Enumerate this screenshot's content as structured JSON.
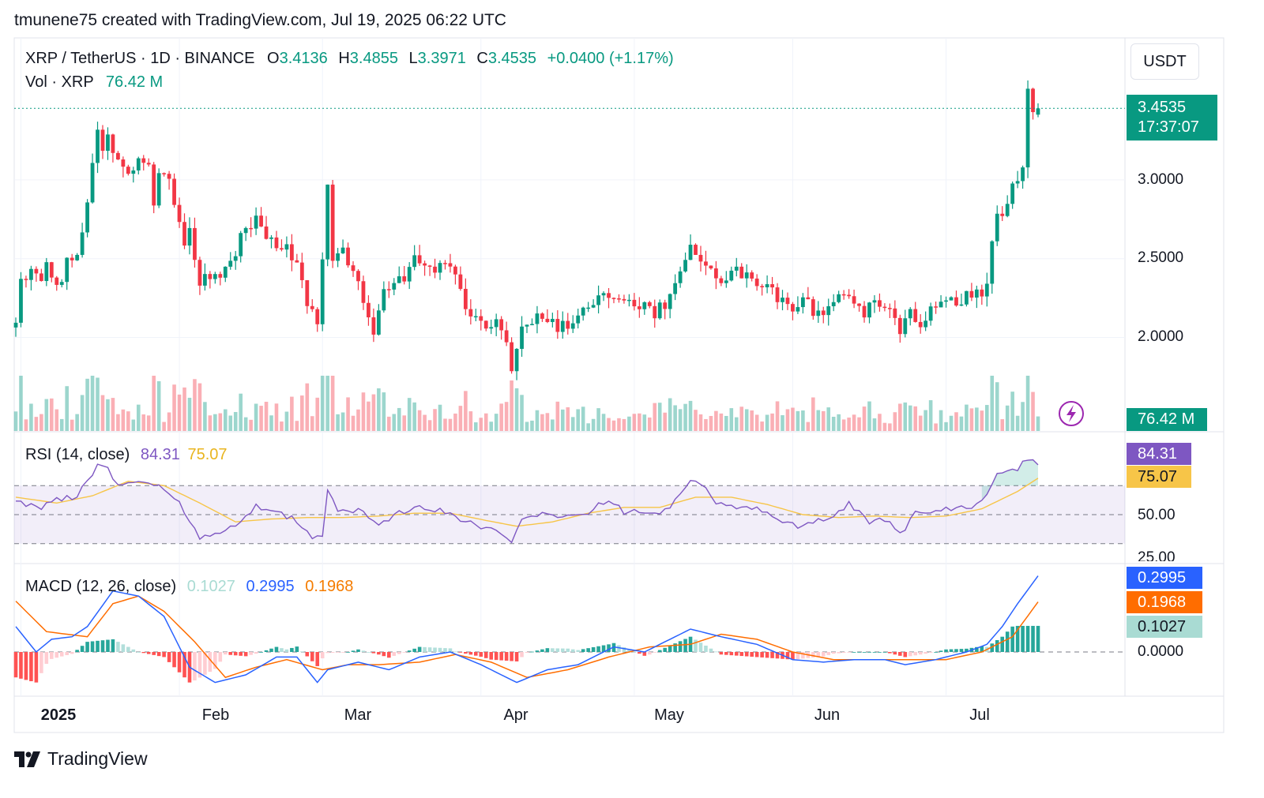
{
  "credit": "tmunene75 created with TradingView.com, Jul 19, 2025 06:22 UTC",
  "legend": {
    "symbol": "XRP / TetherUS · 1D · BINANCE",
    "o_label": "O",
    "o": "3.4136",
    "h_label": "H",
    "h": "3.4855",
    "l_label": "L",
    "l": "3.3971",
    "c_label": "C",
    "c": "3.4535",
    "change": "+0.0400 (+1.17%)",
    "vol_label": "Vol · XRP",
    "vol": "76.42 M"
  },
  "currency": "USDT",
  "price_tag": {
    "price": "3.4535",
    "countdown": "17:37:07"
  },
  "vol_tag": "76.42 M",
  "price_axis": [
    "3.0000",
    "2.5000",
    "2.0000"
  ],
  "rsi": {
    "label": "RSI (14, close)",
    "value": "84.31",
    "ma": "75.07",
    "axis": [
      "50.00",
      "25.00"
    ]
  },
  "macd": {
    "label": "MACD (12, 26, close)",
    "hist": "0.1027",
    "macd": "0.2995",
    "signal": "0.1968",
    "axis": [
      "0.0000"
    ]
  },
  "time_axis": [
    "2025",
    "Feb",
    "Mar",
    "Apr",
    "May",
    "Jun",
    "Jul"
  ],
  "brand": "TradingView",
  "colors": {
    "up": "#089981",
    "down": "#f23645",
    "rsi": "#7e57c2",
    "rsi_ma": "#f7c548",
    "macd": "#2962ff",
    "signal": "#ff6d00"
  },
  "chart_data": {
    "type": "candlestick",
    "symbol": "XRP / TetherUS",
    "interval": "1D",
    "exchange": "BINANCE",
    "x_start": "2024-12-31",
    "price_range": [
      1.6,
      3.8
    ],
    "last": {
      "open": 3.4136,
      "high": 3.4855,
      "low": 3.3971,
      "close": 3.4535
    },
    "close_path": [
      [
        "2024-12-31",
        2.08
      ],
      [
        "2025-01-01",
        2.35
      ],
      [
        "2025-01-03",
        2.42
      ],
      [
        "2025-01-05",
        2.38
      ],
      [
        "2025-01-06",
        2.45
      ],
      [
        "2025-01-08",
        2.3
      ],
      [
        "2025-01-10",
        2.48
      ],
      [
        "2025-01-12",
        2.55
      ],
      [
        "2025-01-14",
        2.82
      ],
      [
        "2025-01-15",
        3.1
      ],
      [
        "2025-01-16",
        3.3
      ],
      [
        "2025-01-17",
        3.22
      ],
      [
        "2025-01-18",
        3.28
      ],
      [
        "2025-01-20",
        3.1
      ],
      [
        "2025-01-22",
        3.05
      ],
      [
        "2025-01-24",
        3.12
      ],
      [
        "2025-01-26",
        3.08
      ],
      [
        "2025-01-27",
        2.85
      ],
      [
        "2025-01-28",
        3.05
      ],
      [
        "2025-01-30",
        2.98
      ],
      [
        "2025-02-02",
        2.55
      ],
      [
        "2025-02-03",
        2.7
      ],
      [
        "2025-02-05",
        2.35
      ],
      [
        "2025-02-07",
        2.4
      ],
      [
        "2025-02-10",
        2.42
      ],
      [
        "2025-02-12",
        2.55
      ],
      [
        "2025-02-14",
        2.72
      ],
      [
        "2025-02-16",
        2.75
      ],
      [
        "2025-02-18",
        2.62
      ],
      [
        "2025-02-20",
        2.6
      ],
      [
        "2025-02-22",
        2.55
      ],
      [
        "2025-02-24",
        2.45
      ],
      [
        "2025-02-26",
        2.2
      ],
      [
        "2025-02-28",
        2.1
      ],
      [
        "2025-03-02",
        2.95
      ],
      [
        "2025-03-03",
        2.45
      ],
      [
        "2025-03-05",
        2.55
      ],
      [
        "2025-03-07",
        2.45
      ],
      [
        "2025-03-09",
        2.2
      ],
      [
        "2025-03-11",
        2.05
      ],
      [
        "2025-03-13",
        2.28
      ],
      [
        "2025-03-15",
        2.38
      ],
      [
        "2025-03-17",
        2.35
      ],
      [
        "2025-03-19",
        2.5
      ],
      [
        "2025-03-21",
        2.45
      ],
      [
        "2025-03-23",
        2.42
      ],
      [
        "2025-03-25",
        2.45
      ],
      [
        "2025-03-27",
        2.4
      ],
      [
        "2025-03-29",
        2.2
      ],
      [
        "2025-03-31",
        2.12
      ],
      [
        "2025-04-02",
        2.08
      ],
      [
        "2025-04-04",
        2.1
      ],
      [
        "2025-04-06",
        1.95
      ],
      [
        "2025-04-07",
        1.82
      ],
      [
        "2025-04-09",
        2.05
      ],
      [
        "2025-04-11",
        2.1
      ],
      [
        "2025-04-13",
        2.15
      ],
      [
        "2025-04-15",
        2.08
      ],
      [
        "2025-04-17",
        2.08
      ],
      [
        "2025-04-19",
        2.1
      ],
      [
        "2025-04-21",
        2.2
      ],
      [
        "2025-04-23",
        2.22
      ],
      [
        "2025-04-25",
        2.25
      ],
      [
        "2025-04-27",
        2.28
      ],
      [
        "2025-04-29",
        2.2
      ],
      [
        "2025-05-01",
        2.22
      ],
      [
        "2025-05-03",
        2.2
      ],
      [
        "2025-05-05",
        2.15
      ],
      [
        "2025-05-07",
        2.22
      ],
      [
        "2025-05-09",
        2.35
      ],
      [
        "2025-05-11",
        2.45
      ],
      [
        "2025-05-12",
        2.55
      ],
      [
        "2025-05-14",
        2.52
      ],
      [
        "2025-05-16",
        2.4
      ],
      [
        "2025-05-18",
        2.38
      ],
      [
        "2025-05-20",
        2.42
      ],
      [
        "2025-05-22",
        2.4
      ],
      [
        "2025-05-24",
        2.38
      ],
      [
        "2025-05-26",
        2.32
      ],
      [
        "2025-05-28",
        2.3
      ],
      [
        "2025-05-30",
        2.22
      ],
      [
        "2025-06-01",
        2.15
      ],
      [
        "2025-06-03",
        2.22
      ],
      [
        "2025-06-05",
        2.18
      ],
      [
        "2025-06-07",
        2.12
      ],
      [
        "2025-06-09",
        2.25
      ],
      [
        "2025-06-11",
        2.28
      ],
      [
        "2025-06-13",
        2.2
      ],
      [
        "2025-06-15",
        2.15
      ],
      [
        "2025-06-17",
        2.22
      ],
      [
        "2025-06-19",
        2.18
      ],
      [
        "2025-06-21",
        2.12
      ],
      [
        "2025-06-22",
        2.02
      ],
      [
        "2025-06-24",
        2.15
      ],
      [
        "2025-06-26",
        2.1
      ],
      [
        "2025-06-28",
        2.18
      ],
      [
        "2025-06-30",
        2.22
      ],
      [
        "2025-07-02",
        2.22
      ],
      [
        "2025-07-04",
        2.25
      ],
      [
        "2025-07-06",
        2.27
      ],
      [
        "2025-07-08",
        2.3
      ],
      [
        "2025-07-09",
        2.38
      ],
      [
        "2025-07-10",
        2.58
      ],
      [
        "2025-07-11",
        2.78
      ],
      [
        "2025-07-12",
        2.8
      ],
      [
        "2025-07-13",
        2.88
      ],
      [
        "2025-07-14",
        2.95
      ],
      [
        "2025-07-15",
        3.0
      ],
      [
        "2025-07-16",
        3.08
      ],
      [
        "2025-07-17",
        3.55
      ],
      [
        "2025-07-18",
        3.4
      ],
      [
        "2025-07-19",
        3.4535
      ]
    ],
    "rsi_points": [
      [
        "2024-12-31",
        58
      ],
      [
        "2025-01-05",
        55
      ],
      [
        "2025-01-08",
        60
      ],
      [
        "2025-01-12",
        63
      ],
      [
        "2025-01-16",
        84
      ],
      [
        "2025-01-18",
        82
      ],
      [
        "2025-01-20",
        70
      ],
      [
        "2025-01-24",
        74
      ],
      [
        "2025-01-28",
        70
      ],
      [
        "2025-02-01",
        60
      ],
      [
        "2025-02-03",
        44
      ],
      [
        "2025-02-05",
        35
      ],
      [
        "2025-02-08",
        38
      ],
      [
        "2025-02-12",
        41
      ],
      [
        "2025-02-16",
        56
      ],
      [
        "2025-02-20",
        52
      ],
      [
        "2025-02-24",
        46
      ],
      [
        "2025-02-27",
        34
      ],
      [
        "2025-03-01",
        35
      ],
      [
        "2025-03-02",
        67
      ],
      [
        "2025-03-04",
        51
      ],
      [
        "2025-03-08",
        54
      ],
      [
        "2025-03-12",
        43
      ],
      [
        "2025-03-16",
        52
      ],
      [
        "2025-03-20",
        55
      ],
      [
        "2025-03-24",
        53
      ],
      [
        "2025-03-28",
        46
      ],
      [
        "2025-04-01",
        42
      ],
      [
        "2025-04-04",
        40
      ],
      [
        "2025-04-07",
        30
      ],
      [
        "2025-04-09",
        46
      ],
      [
        "2025-04-13",
        50
      ],
      [
        "2025-04-18",
        48
      ],
      [
        "2025-04-22",
        52
      ],
      [
        "2025-04-26",
        61
      ],
      [
        "2025-04-29",
        52
      ],
      [
        "2025-05-03",
        52
      ],
      [
        "2025-05-06",
        49
      ],
      [
        "2025-05-10",
        63
      ],
      [
        "2025-05-12",
        74
      ],
      [
        "2025-05-14",
        72
      ],
      [
        "2025-05-17",
        57
      ],
      [
        "2025-05-21",
        54
      ],
      [
        "2025-05-25",
        55
      ],
      [
        "2025-05-29",
        48
      ],
      [
        "2025-06-02",
        41
      ],
      [
        "2025-06-05",
        45
      ],
      [
        "2025-06-09",
        49
      ],
      [
        "2025-06-12",
        58
      ],
      [
        "2025-06-16",
        45
      ],
      [
        "2025-06-20",
        47
      ],
      [
        "2025-06-22",
        36
      ],
      [
        "2025-06-25",
        51
      ],
      [
        "2025-06-29",
        53
      ],
      [
        "2025-07-03",
        54
      ],
      [
        "2025-07-06",
        56
      ],
      [
        "2025-07-09",
        63
      ],
      [
        "2025-07-11",
        79
      ],
      [
        "2025-07-13",
        80
      ],
      [
        "2025-07-15",
        82
      ],
      [
        "2025-07-17",
        88
      ],
      [
        "2025-07-19",
        84.31
      ]
    ],
    "rsi_ma_points": [
      [
        "2024-12-31",
        62
      ],
      [
        "2025-01-08",
        58
      ],
      [
        "2025-01-15",
        63
      ],
      [
        "2025-01-22",
        73
      ],
      [
        "2025-01-29",
        70
      ],
      [
        "2025-02-05",
        58
      ],
      [
        "2025-02-12",
        45
      ],
      [
        "2025-02-19",
        47
      ],
      [
        "2025-02-26",
        48
      ],
      [
        "2025-03-05",
        48
      ],
      [
        "2025-03-12",
        49
      ],
      [
        "2025-03-19",
        51
      ],
      [
        "2025-03-26",
        51
      ],
      [
        "2025-04-02",
        46
      ],
      [
        "2025-04-08",
        42
      ],
      [
        "2025-04-15",
        45
      ],
      [
        "2025-04-22",
        51
      ],
      [
        "2025-04-29",
        55
      ],
      [
        "2025-05-06",
        55
      ],
      [
        "2025-05-13",
        62
      ],
      [
        "2025-05-20",
        62
      ],
      [
        "2025-05-27",
        57
      ],
      [
        "2025-06-03",
        50
      ],
      [
        "2025-06-10",
        48
      ],
      [
        "2025-06-17",
        49
      ],
      [
        "2025-06-24",
        48
      ],
      [
        "2025-07-01",
        49
      ],
      [
        "2025-07-08",
        54
      ],
      [
        "2025-07-15",
        66
      ],
      [
        "2025-07-19",
        75.07
      ]
    ],
    "macd_points": [
      [
        "2024-12-31",
        0.1
      ],
      [
        "2025-01-04",
        0.0
      ],
      [
        "2025-01-07",
        0.05
      ],
      [
        "2025-01-11",
        0.06
      ],
      [
        "2025-01-14",
        0.1
      ],
      [
        "2025-01-19",
        0.24
      ],
      [
        "2025-01-24",
        0.22
      ],
      [
        "2025-01-29",
        0.14
      ],
      [
        "2025-02-03",
        -0.06
      ],
      [
        "2025-02-08",
        -0.12
      ],
      [
        "2025-02-14",
        -0.09
      ],
      [
        "2025-02-20",
        -0.02
      ],
      [
        "2025-02-24",
        -0.02
      ],
      [
        "2025-02-28",
        -0.12
      ],
      [
        "2025-03-02",
        -0.07
      ],
      [
        "2025-03-08",
        -0.04
      ],
      [
        "2025-03-14",
        -0.07
      ],
      [
        "2025-03-20",
        -0.02
      ],
      [
        "2025-03-26",
        0.0
      ],
      [
        "2025-04-01",
        -0.05
      ],
      [
        "2025-04-08",
        -0.12
      ],
      [
        "2025-04-14",
        -0.07
      ],
      [
        "2025-04-20",
        -0.05
      ],
      [
        "2025-04-27",
        0.02
      ],
      [
        "2025-05-03",
        0.0
      ],
      [
        "2025-05-08",
        0.05
      ],
      [
        "2025-05-12",
        0.09
      ],
      [
        "2025-05-18",
        0.06
      ],
      [
        "2025-05-25",
        0.03
      ],
      [
        "2025-06-01",
        -0.03
      ],
      [
        "2025-06-07",
        -0.04
      ],
      [
        "2025-06-13",
        -0.03
      ],
      [
        "2025-06-19",
        -0.03
      ],
      [
        "2025-06-23",
        -0.05
      ],
      [
        "2025-06-29",
        -0.03
      ],
      [
        "2025-07-05",
        0.0
      ],
      [
        "2025-07-09",
        0.03
      ],
      [
        "2025-07-12",
        0.1
      ],
      [
        "2025-07-15",
        0.19
      ],
      [
        "2025-07-19",
        0.2995
      ]
    ],
    "signal_points": [
      [
        "2024-12-31",
        0.2
      ],
      [
        "2025-01-06",
        0.08
      ],
      [
        "2025-01-10",
        0.07
      ],
      [
        "2025-01-14",
        0.06
      ],
      [
        "2025-01-19",
        0.19
      ],
      [
        "2025-01-24",
        0.22
      ],
      [
        "2025-01-29",
        0.16
      ],
      [
        "2025-02-04",
        0.04
      ],
      [
        "2025-02-10",
        -0.1
      ],
      [
        "2025-02-16",
        -0.06
      ],
      [
        "2025-02-22",
        -0.03
      ],
      [
        "2025-03-01",
        -0.07
      ],
      [
        "2025-03-06",
        -0.05
      ],
      [
        "2025-03-12",
        -0.05
      ],
      [
        "2025-03-20",
        -0.04
      ],
      [
        "2025-03-27",
        -0.01
      ],
      [
        "2025-04-03",
        -0.04
      ],
      [
        "2025-04-10",
        -0.1
      ],
      [
        "2025-04-18",
        -0.07
      ],
      [
        "2025-04-26",
        -0.02
      ],
      [
        "2025-05-04",
        0.02
      ],
      [
        "2025-05-12",
        0.03
      ],
      [
        "2025-05-18",
        0.07
      ],
      [
        "2025-05-25",
        0.05
      ],
      [
        "2025-06-01",
        0.0
      ],
      [
        "2025-06-09",
        -0.03
      ],
      [
        "2025-06-16",
        -0.03
      ],
      [
        "2025-06-24",
        -0.03
      ],
      [
        "2025-07-01",
        -0.03
      ],
      [
        "2025-07-08",
        0.0
      ],
      [
        "2025-07-14",
        0.06
      ],
      [
        "2025-07-19",
        0.1968
      ]
    ],
    "macd_range": [
      -0.13,
      0.33
    ]
  }
}
